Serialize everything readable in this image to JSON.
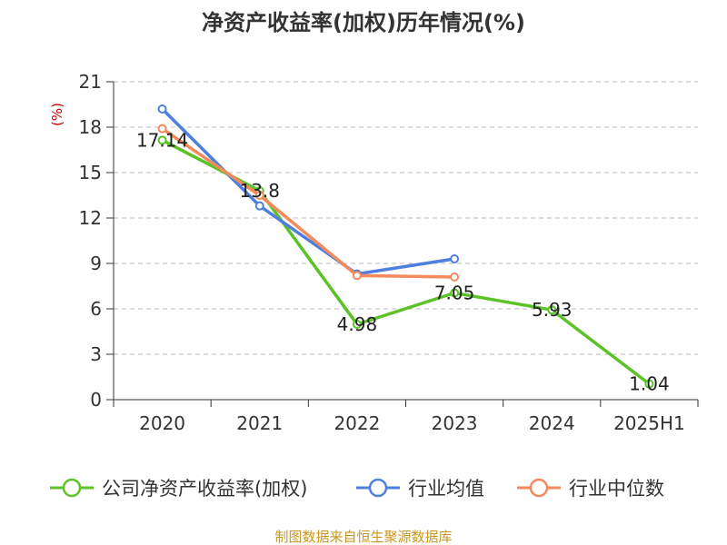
{
  "chart_data": {
    "type": "line",
    "title": "净资产收益率(加权)历年情况(%)",
    "ylabel": "(%)",
    "xlabel": "",
    "categories": [
      "2020",
      "2021",
      "2022",
      "2023",
      "2024",
      "2025H1"
    ],
    "ylim": [
      0,
      21
    ],
    "yticks": [
      0,
      3,
      6,
      9,
      12,
      15,
      18,
      21
    ],
    "grid": true,
    "legend_position": "bottom",
    "series": [
      {
        "name": "公司净资产收益率(加权)",
        "color": "#5bc227",
        "values": [
          17.14,
          13.8,
          4.98,
          7.05,
          5.93,
          1.04
        ],
        "labels": [
          "17.14",
          "13.8",
          "4.98",
          "7.05",
          "5.93",
          "1.04"
        ]
      },
      {
        "name": "行业均值",
        "color": "#4f7fdc",
        "values": [
          19.2,
          12.8,
          8.3,
          9.3,
          null,
          null
        ]
      },
      {
        "name": "行业中位数",
        "color": "#f28a5b",
        "values": [
          17.9,
          13.5,
          8.2,
          8.1,
          null,
          null
        ]
      }
    ]
  },
  "source_text": "制图数据来自恒生聚源数据库"
}
